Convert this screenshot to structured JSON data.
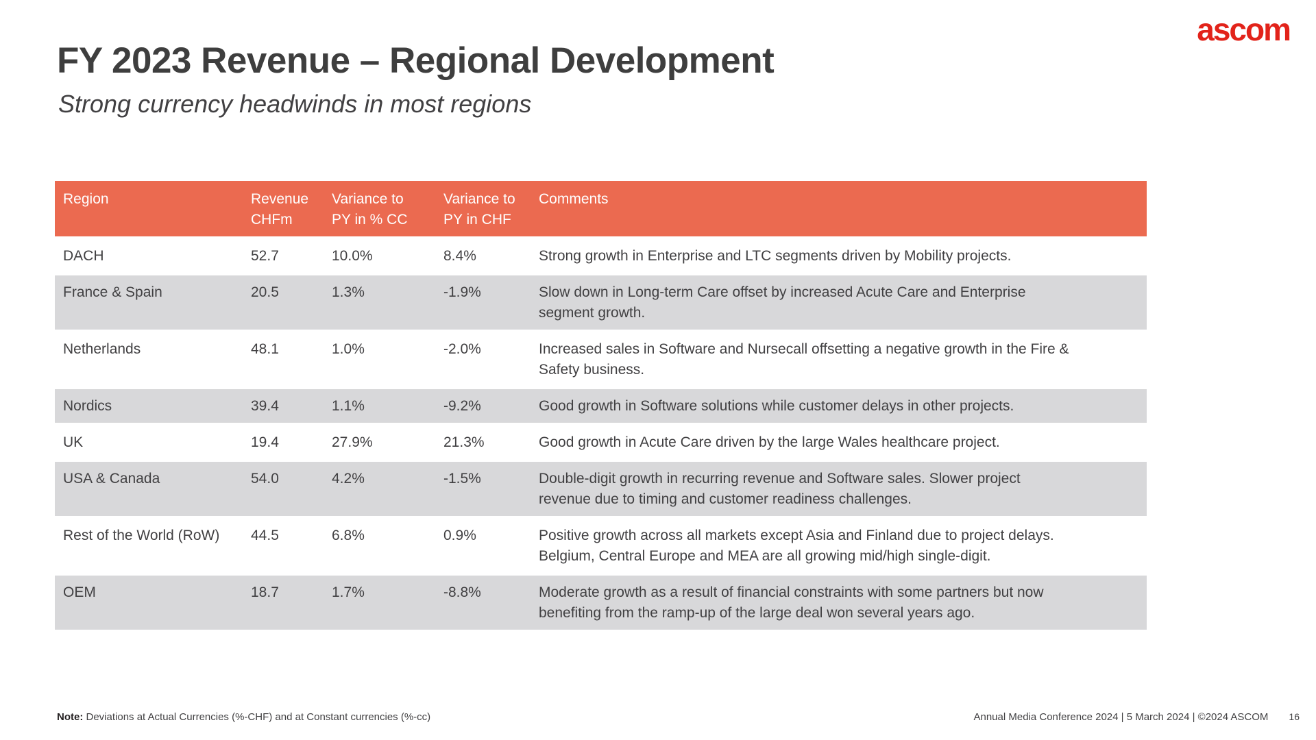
{
  "slide": {
    "logo": "ascom",
    "title": "FY 2023 Revenue – Regional Development",
    "subtitle": "Strong currency headwinds in most regions",
    "footer_note_label": "Note:",
    "footer_note": " Deviations at Actual Currencies (%-CHF) and at Constant currencies (%-cc)",
    "footer_right": "Annual Media Conference 2024 | 5 March 2024 | ©2024 ASCOM",
    "page_number": "16"
  },
  "colors": {
    "header_bg": "#eb6a50",
    "row_alt_bg": "#d8d8da",
    "logo_red": "#e2231a",
    "text": "#414042"
  },
  "table": {
    "headers": {
      "region": "Region",
      "revenue": "Revenue\nCHFm",
      "variance_cc": "Variance to\nPY in % CC",
      "variance_chf": "Variance to\nPY in CHF",
      "comments": "Comments"
    },
    "rows": [
      {
        "region": "DACH",
        "revenue": "52.7",
        "variance_cc": "10.0%",
        "variance_chf": "8.4%",
        "comments": "Strong growth in Enterprise and LTC segments driven by Mobility projects."
      },
      {
        "region": "France & Spain",
        "revenue": "20.5",
        "variance_cc": "1.3%",
        "variance_chf": "-1.9%",
        "comments": "Slow down in Long-term Care offset by increased Acute Care and Enterprise\nsegment growth."
      },
      {
        "region": "Netherlands",
        "revenue": "48.1",
        "variance_cc": "1.0%",
        "variance_chf": "-2.0%",
        "comments": "Increased sales in Software and Nursecall offsetting a negative growth in the Fire &\nSafety business."
      },
      {
        "region": "Nordics",
        "revenue": "39.4",
        "variance_cc": "1.1%",
        "variance_chf": "-9.2%",
        "comments": "Good growth in Software solutions while customer delays in other projects."
      },
      {
        "region": "UK",
        "revenue": "19.4",
        "variance_cc": "27.9%",
        "variance_chf": "21.3%",
        "comments": "Good growth in Acute Care driven by the large Wales healthcare project."
      },
      {
        "region": "USA & Canada",
        "revenue": "54.0",
        "variance_cc": "4.2%",
        "variance_chf": "-1.5%",
        "comments": "Double-digit growth in recurring revenue and Software sales. Slower project\nrevenue due to timing and customer readiness challenges."
      },
      {
        "region": "Rest of the World (RoW)",
        "revenue": "44.5",
        "variance_cc": "6.8%",
        "variance_chf": "0.9%",
        "comments": "Positive growth across all markets except Asia and Finland due to project delays.\nBelgium, Central Europe and MEA are all growing mid/high single-digit."
      },
      {
        "region": "OEM",
        "revenue": "18.7",
        "variance_cc": "1.7%",
        "variance_chf": "-8.8%",
        "comments": "Moderate growth as a result of financial constraints with some partners but now\nbenefiting from the ramp-up of the large deal won several years ago."
      }
    ]
  }
}
